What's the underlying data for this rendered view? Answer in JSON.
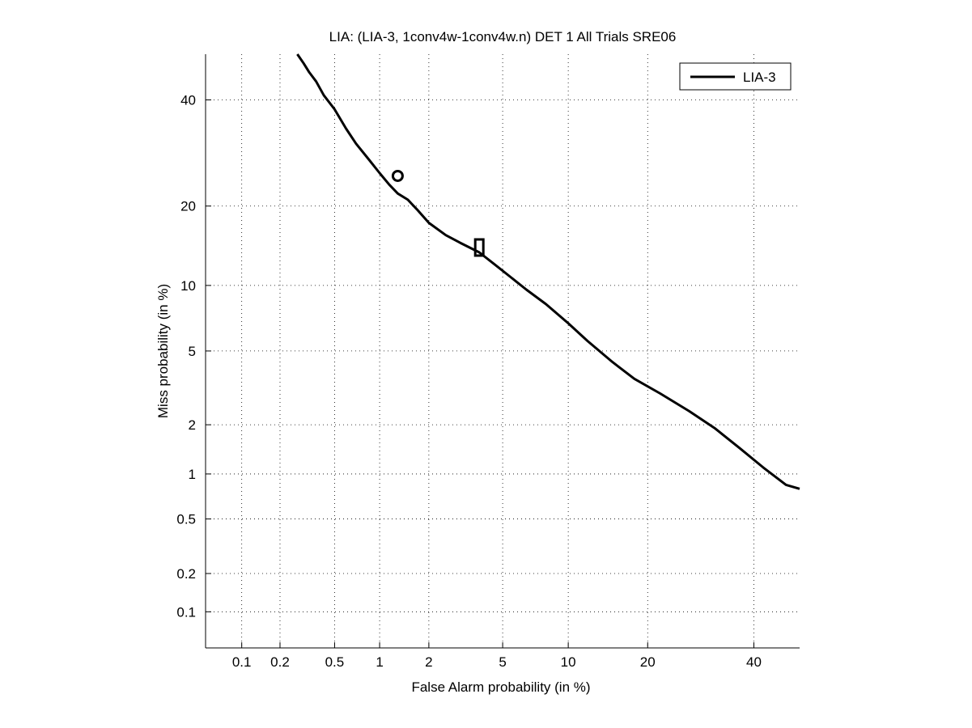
{
  "chart_data": {
    "type": "line",
    "scale": "probit",
    "title": "LIA: (LIA-3, 1conv4w-1conv4w.n) DET 1 All Trials SRE06",
    "xlabel": "False Alarm probability (in %)",
    "ylabel": "Miss probability (in %)",
    "xlim": [
      0.05,
      50
    ],
    "ylim": [
      0.05,
      50
    ],
    "x_ticks": [
      0.1,
      0.2,
      0.5,
      1,
      2,
      5,
      10,
      20,
      40
    ],
    "x_tick_labels": [
      "0.1",
      "0.2",
      "0.5",
      "1",
      "2",
      "5",
      "10",
      "20",
      "40"
    ],
    "y_ticks": [
      0.1,
      0.2,
      0.5,
      1,
      2,
      5,
      10,
      20,
      40
    ],
    "y_tick_labels": [
      "0.1",
      "0.2",
      "0.5",
      "1",
      "2",
      "5",
      "10",
      "20",
      "40"
    ],
    "grid": true,
    "legend_position": "top-right",
    "series": [
      {
        "name": "LIA-3",
        "color": "#000000",
        "x": [
          0.27,
          0.3,
          0.33,
          0.37,
          0.42,
          0.5,
          0.6,
          0.7,
          0.85,
          1.0,
          1.15,
          1.3,
          1.5,
          1.7,
          2.0,
          2.5,
          3.0,
          3.8,
          4.5,
          5.5,
          6.5,
          8.0,
          10,
          12,
          15,
          18,
          22,
          27,
          32,
          37,
          42,
          47,
          50
        ],
        "y": [
          50,
          48,
          46,
          44,
          41,
          38,
          34,
          31,
          28,
          25.5,
          23.5,
          22,
          21,
          19.5,
          17.5,
          15.8,
          14.8,
          13.6,
          12.3,
          10.8,
          9.6,
          8.3,
          6.8,
          5.6,
          4.4,
          3.6,
          3.0,
          2.4,
          1.9,
          1.45,
          1.1,
          0.85,
          0.8
        ]
      }
    ],
    "markers": [
      {
        "shape": "circle",
        "x": 1.3,
        "y": 25
      },
      {
        "shape": "square",
        "x": 3.8,
        "y": 14.2
      }
    ]
  }
}
